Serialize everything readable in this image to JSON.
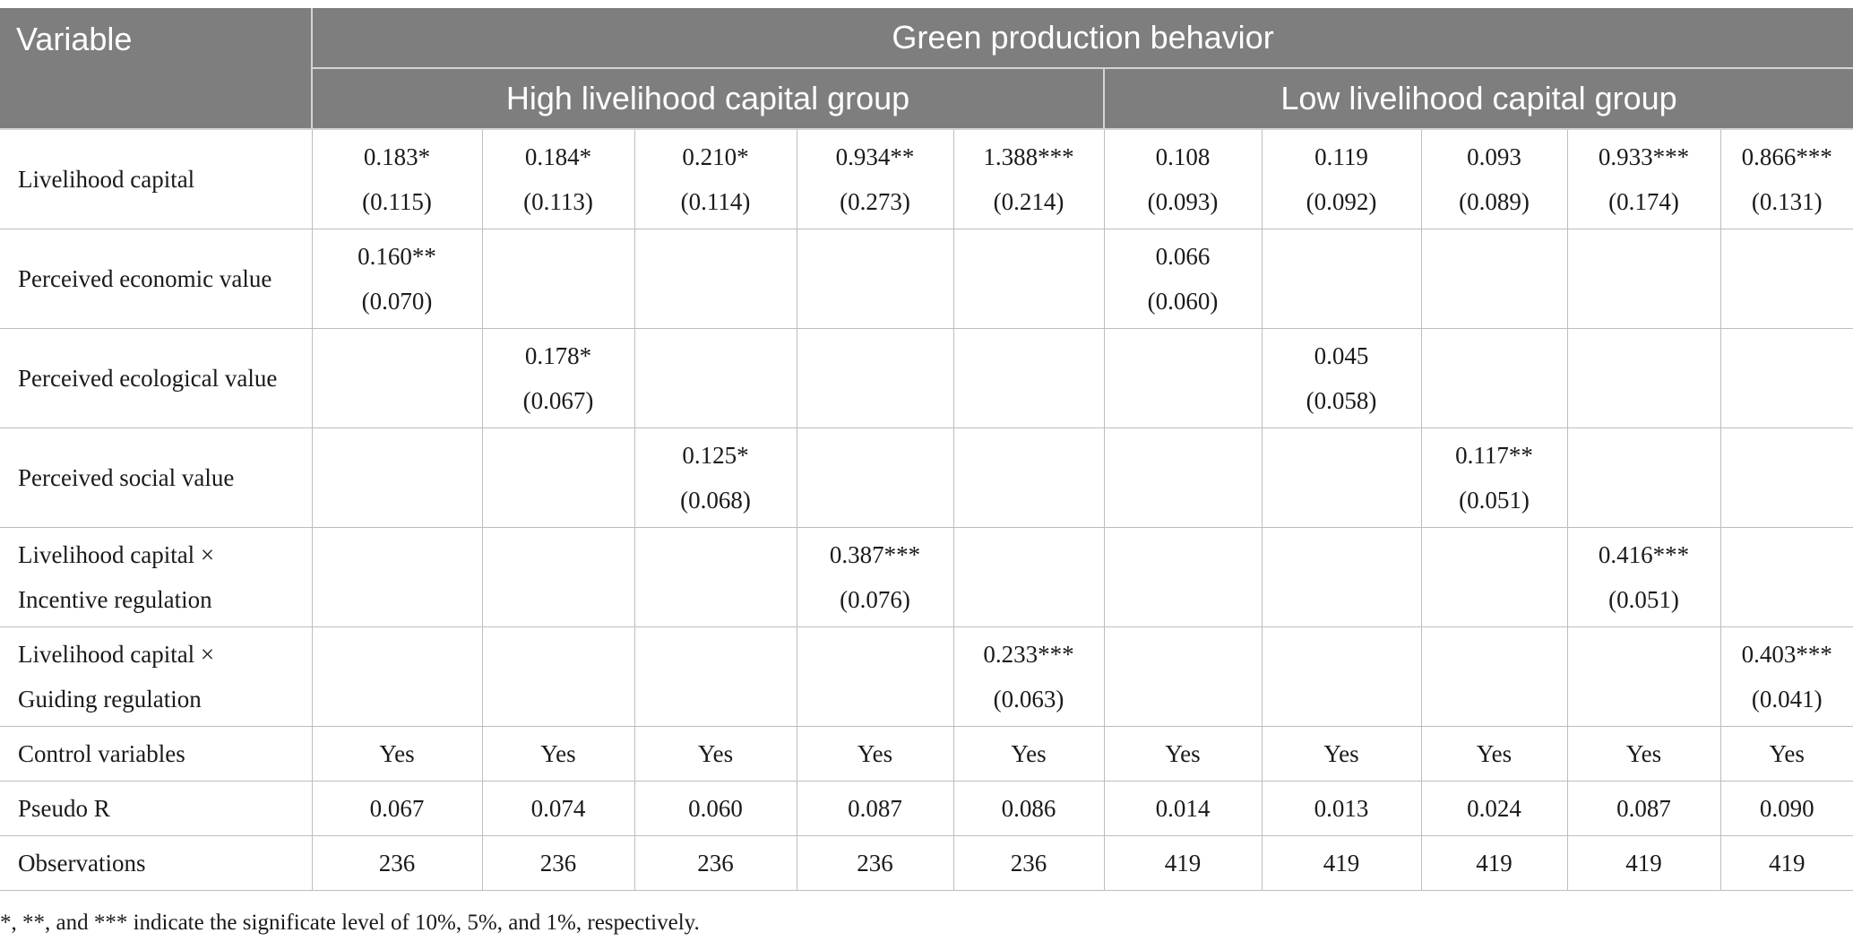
{
  "table": {
    "header": {
      "variable": "Variable",
      "outcome": "Green production behavior",
      "groups": [
        "High livelihood capital group",
        "Low livelihood capital group"
      ]
    },
    "rows": [
      {
        "label": [
          "Livelihood capital"
        ],
        "cells": [
          [
            "0.183*",
            "(0.115)"
          ],
          [
            "0.184*",
            "(0.113)"
          ],
          [
            "0.210*",
            "(0.114)"
          ],
          [
            "0.934**",
            "(0.273)"
          ],
          [
            "1.388***",
            "(0.214)"
          ],
          [
            "0.108",
            "(0.093)"
          ],
          [
            "0.119",
            "(0.092)"
          ],
          [
            "0.093",
            "(0.089)"
          ],
          [
            "0.933***",
            "(0.174)"
          ],
          [
            "0.866***",
            "(0.131)"
          ]
        ]
      },
      {
        "label": [
          "Perceived economic value"
        ],
        "cells": [
          [
            "0.160**",
            "(0.070)"
          ],
          [],
          [],
          [],
          [],
          [
            "0.066",
            "(0.060)"
          ],
          [],
          [],
          [],
          []
        ]
      },
      {
        "label": [
          "Perceived ecological value"
        ],
        "cells": [
          [],
          [
            "0.178*",
            "(0.067)"
          ],
          [],
          [],
          [],
          [],
          [
            "0.045",
            "(0.058)"
          ],
          [],
          [],
          []
        ]
      },
      {
        "label": [
          "Perceived social value"
        ],
        "cells": [
          [],
          [],
          [
            "0.125*",
            "(0.068)"
          ],
          [],
          [],
          [],
          [],
          [
            "0.117**",
            "(0.051)"
          ],
          [],
          []
        ]
      },
      {
        "label": [
          "Livelihood capital ×",
          "Incentive regulation"
        ],
        "cells": [
          [],
          [],
          [],
          [
            "0.387***",
            "(0.076)"
          ],
          [],
          [],
          [],
          [],
          [
            "0.416***",
            "(0.051)"
          ],
          []
        ]
      },
      {
        "label": [
          "Livelihood capital ×",
          "Guiding regulation"
        ],
        "cells": [
          [],
          [],
          [],
          [],
          [
            "0.233***",
            "(0.063)"
          ],
          [],
          [],
          [],
          [],
          [
            "0.403***",
            "(0.041)"
          ]
        ]
      }
    ],
    "summary_rows": [
      {
        "label": "Control variables",
        "cells": [
          "Yes",
          "Yes",
          "Yes",
          "Yes",
          "Yes",
          "Yes",
          "Yes",
          "Yes",
          "Yes",
          "Yes"
        ]
      },
      {
        "label": "Pseudo R",
        "cells": [
          "0.067",
          "0.074",
          "0.060",
          "0.087",
          "0.086",
          "0.014",
          "0.013",
          "0.024",
          "0.087",
          "0.090"
        ]
      },
      {
        "label": "Observations",
        "cells": [
          "236",
          "236",
          "236",
          "236",
          "236",
          "419",
          "419",
          "419",
          "419",
          "419"
        ]
      }
    ]
  },
  "note": "*, **, and *** indicate the significate level of 10%, 5%, and 1%, respectively."
}
